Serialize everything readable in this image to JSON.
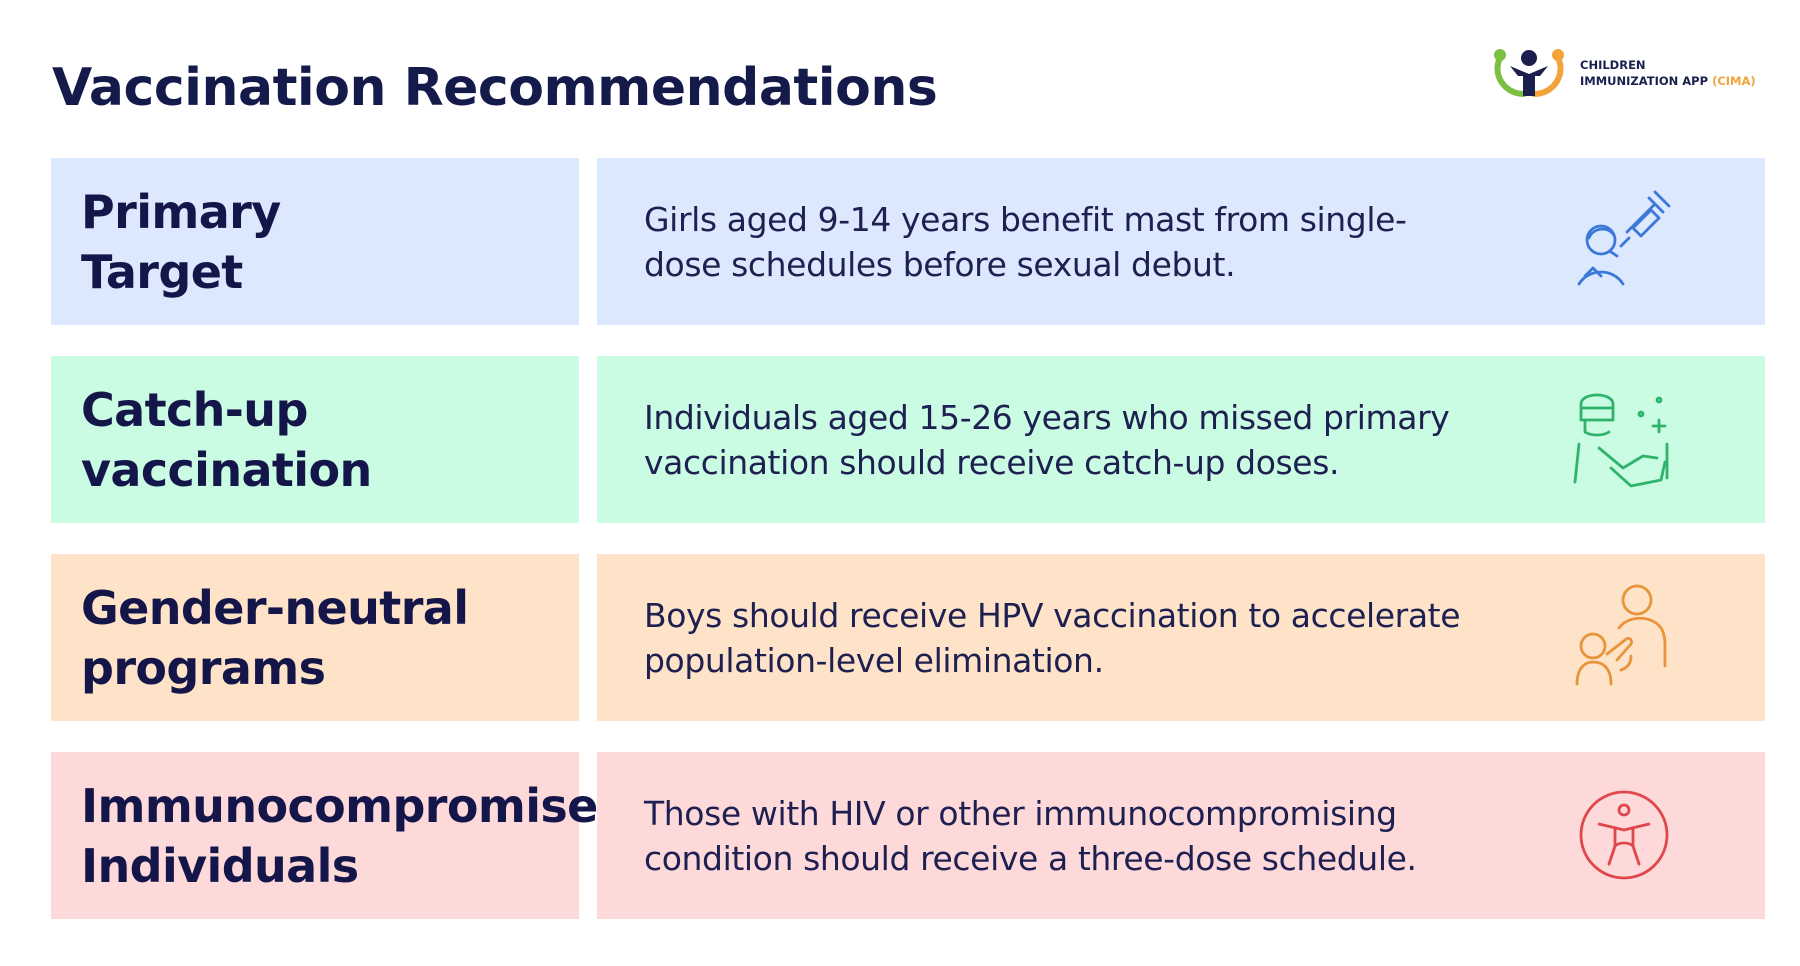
{
  "title": "Vaccination Recommendations",
  "logo": {
    "line1": "CHILDREN",
    "line2": "IMMUNIZATION APP",
    "abbr": "(CIMA)"
  },
  "rows": [
    {
      "label_line1": "Primary",
      "label_line2": "Target",
      "text": "Girls aged 9-14 years benefit mast from single-dose schedules before sexual debut.",
      "icon": "vaccination-icon",
      "bg": "#dce8fd",
      "accent": "#3c78d8"
    },
    {
      "label_line1": "Catch-up",
      "label_line2": "vaccination",
      "text": "Individuals aged 15-26 years who missed primary vaccination should receive catch-up doses.",
      "icon": "health-worker-icon",
      "bg": "#cafbe3",
      "accent": "#2fb36b"
    },
    {
      "label_line1": "Gender-neutral",
      "label_line2": "programs",
      "text": "Boys should receive HPV vaccination to accelerate population-level elimination.",
      "icon": "parent-child-icon",
      "bg": "#fee3c8",
      "accent": "#e8943a"
    },
    {
      "label_line1": "Immunocompromised",
      "label_line2": "Individuals",
      "text": "Those with HIV or other immunocompromising condition should receive a three-dose schedule.",
      "icon": "accessibility-icon",
      "bg": "#fed9da",
      "accent": "#e0474c"
    }
  ]
}
